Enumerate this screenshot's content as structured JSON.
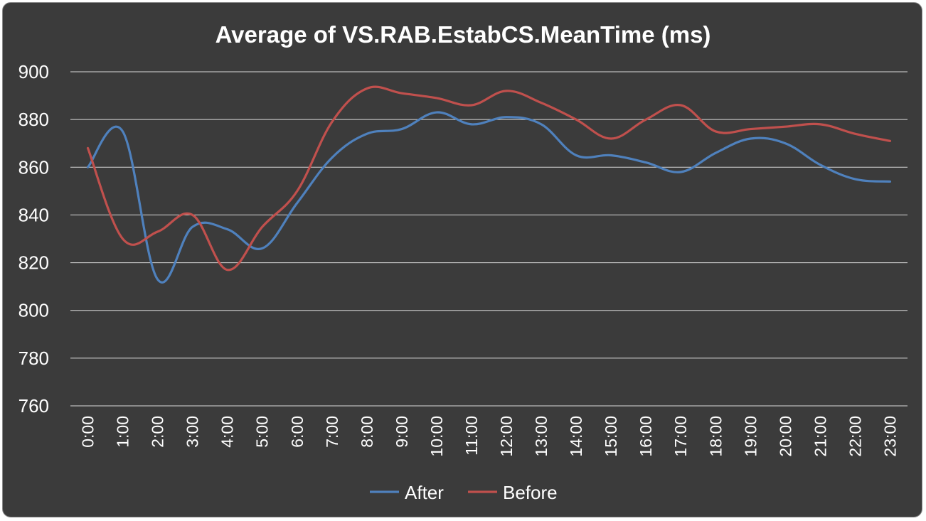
{
  "chart_data": {
    "type": "line",
    "title": "Average of VS.RAB.EstabCS.MeanTime (ms)",
    "xlabel": "",
    "ylabel": "",
    "ylim": [
      760,
      900
    ],
    "yticks": [
      "760",
      "780",
      "800",
      "820",
      "840",
      "860",
      "880",
      "900"
    ],
    "categories": [
      "0:00",
      "1:00",
      "2:00",
      "3:00",
      "4:00",
      "5:00",
      "6:00",
      "7:00",
      "8:00",
      "9:00",
      "10:00",
      "11:00",
      "12:00",
      "13:00",
      "14:00",
      "15:00",
      "16:00",
      "17:00",
      "18:00",
      "19:00",
      "20:00",
      "21:00",
      "22:00",
      "23:00"
    ],
    "grid": true,
    "legend": "bottom",
    "series": [
      {
        "name": "After",
        "color": "#4f81bd",
        "values": [
          860,
          875,
          813,
          835,
          834,
          826,
          845,
          864,
          874,
          876,
          883,
          878,
          881,
          878,
          865,
          865,
          862,
          858,
          866,
          872,
          870,
          861,
          855,
          854
        ]
      },
      {
        "name": "Before",
        "color": "#c0504d",
        "values": [
          868,
          830,
          833,
          840,
          817,
          835,
          850,
          879,
          893,
          891,
          889,
          886,
          892,
          887,
          880,
          872,
          880,
          886,
          875,
          876,
          877,
          878,
          874,
          871
        ]
      }
    ]
  }
}
